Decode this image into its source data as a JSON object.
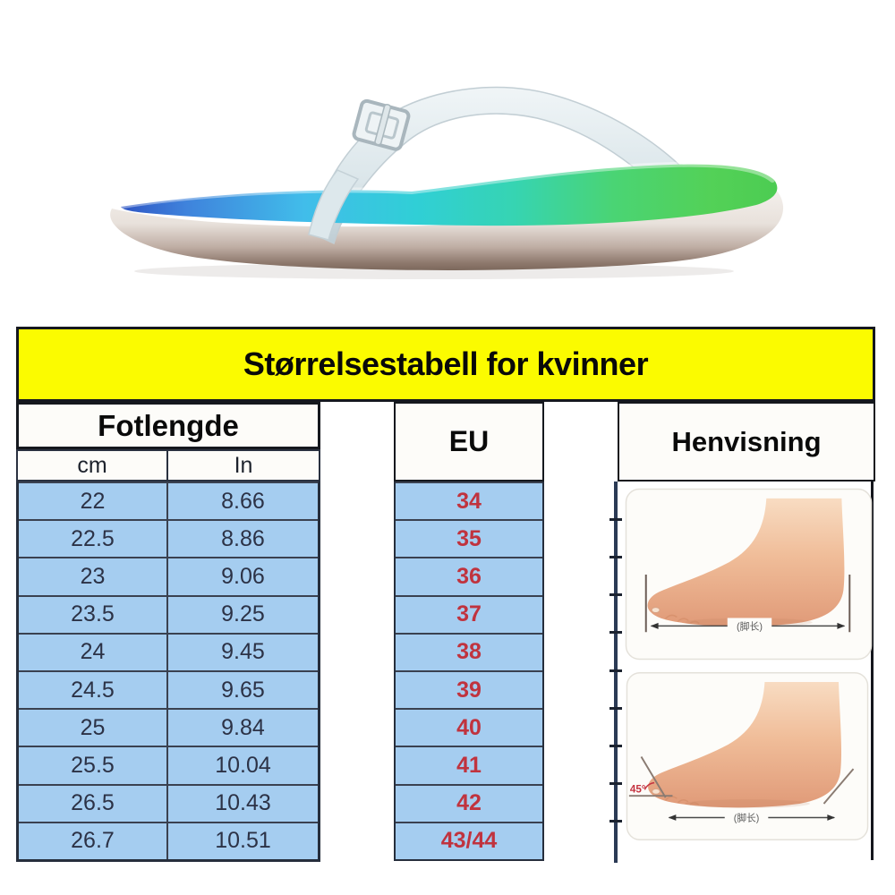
{
  "page": {
    "bg": "#ffffff"
  },
  "product": {
    "name": "gradient flip-flop sandal side view",
    "colors": {
      "footbed_left_blue": "#2E55C4",
      "footbed_cyan": "#30CFD6",
      "footbed_right_green": "#4CCC52",
      "strap": "#DCE7EB",
      "outsole": "#8D786C"
    }
  },
  "size_chart": {
    "title": "Størrelsestabell for kvinner",
    "header": {
      "foot_length": "Fotlengde",
      "cm": "cm",
      "in": "In",
      "eu": "EU",
      "reference": "Henvisning"
    },
    "colors": {
      "title_bg": "#FBFB00",
      "cell_bg": "#A5CDF0",
      "eu_text": "#C0333E",
      "grid_line": "#3A4150",
      "cell_text": "#2C3246"
    }
  },
  "chart_data": {
    "type": "table",
    "title": "Størrelsestabell for kvinner",
    "column_groups": [
      {
        "label": "Fotlengde",
        "subcolumns": [
          "cm",
          "In"
        ]
      },
      {
        "label": "EU"
      },
      {
        "label": "Henvisning"
      }
    ],
    "columns": [
      "cm",
      "In",
      "EU"
    ],
    "rows": [
      [
        "22",
        "8.66",
        "34"
      ],
      [
        "22.5",
        "8.86",
        "35"
      ],
      [
        "23",
        "9.06",
        "36"
      ],
      [
        "23.5",
        "9.25",
        "37"
      ],
      [
        "24",
        "9.45",
        "38"
      ],
      [
        "24.5",
        "9.65",
        "39"
      ],
      [
        "25",
        "9.84",
        "40"
      ],
      [
        "25.5",
        "10.04",
        "41"
      ],
      [
        "26.5",
        "10.43",
        "42"
      ],
      [
        "26.7",
        "10.51",
        "43/44"
      ]
    ]
  },
  "reference_diagrams": {
    "foot_length_label": "(脚长)",
    "angle_label": "45°"
  }
}
